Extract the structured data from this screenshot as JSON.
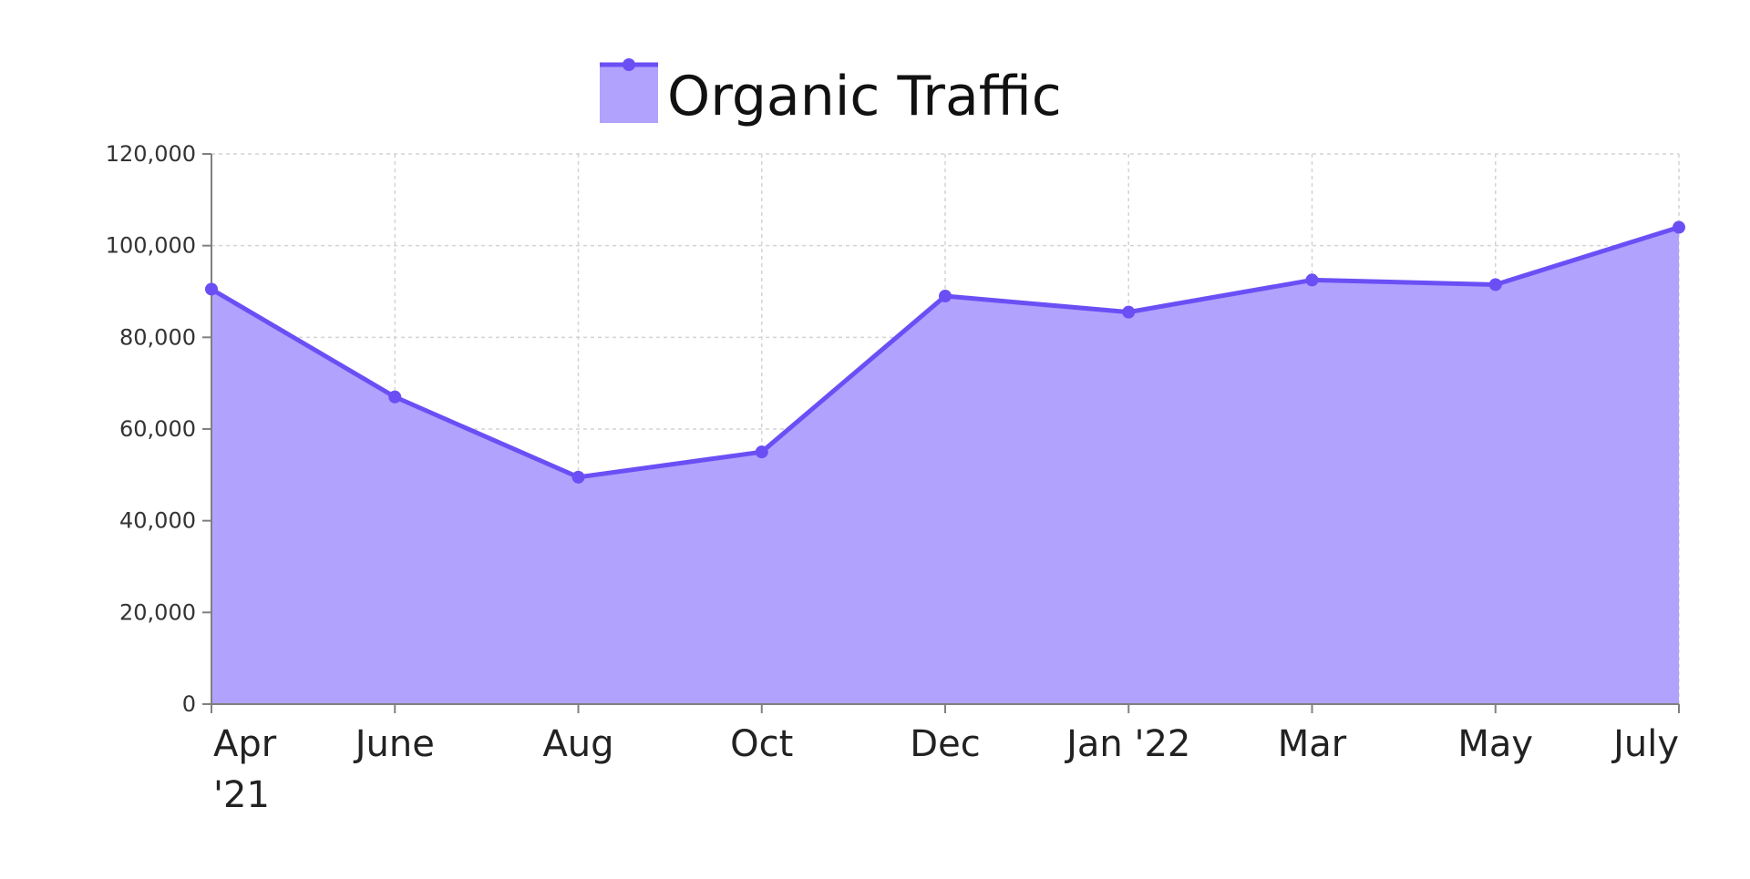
{
  "chart_data": {
    "type": "area",
    "title": "",
    "xlabel": "",
    "ylabel": "",
    "categories": [
      "Apr '21",
      "June",
      "Aug",
      "Oct",
      "Dec",
      "Jan '22",
      "Mar",
      "May",
      "July"
    ],
    "series": [
      {
        "name": "Organic Traffic",
        "values": [
          90500,
          67000,
          49500,
          55000,
          89000,
          85500,
          92500,
          91500,
          104000
        ]
      }
    ],
    "ylim": [
      0,
      120000
    ],
    "yticks": [
      0,
      20000,
      40000,
      60000,
      80000,
      100000,
      120000
    ],
    "ytick_labels": [
      "0",
      "20,000",
      "40,000",
      "60,000",
      "80,000",
      "100,000",
      "120,000"
    ],
    "grid": true,
    "legend_position": "top-center",
    "colors": {
      "line": "#6b4ff5",
      "fill": "#b1a2fd",
      "grid": "#d4d4d4",
      "axis": "#808080"
    }
  }
}
